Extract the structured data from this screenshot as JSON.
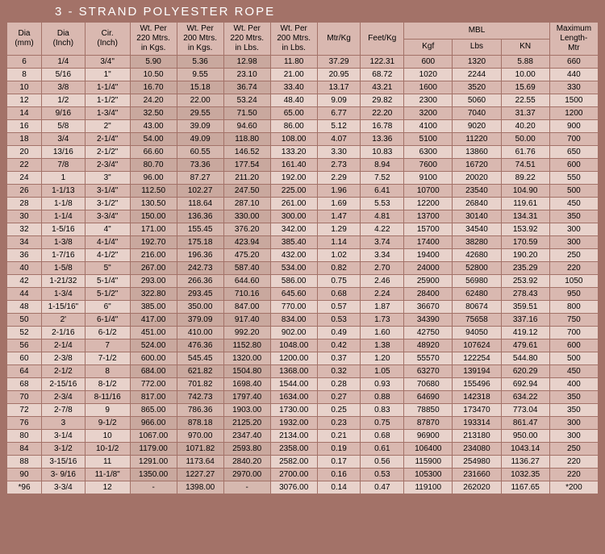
{
  "title": "3 - STRAND  POLYESTER  ROPE",
  "headers": {
    "dia_mm": "Dia\n(mm)",
    "dia_in": "Dia\n(Inch)",
    "cir_in": "Cir.\n(Inch)",
    "wt220kg": "Wt. Per\n220 Mtrs.\nin Kgs.",
    "wt200kg": "Wt. Per\n200 Mtrs.\nin Kgs.",
    "wt220lb": "Wt. Per\n220 Mtrs.\nin Lbs.",
    "wt200lb": "Wt. Per\n200 Mtrs.\nin Lbs.",
    "mtrkg": "Mtr/Kg",
    "ftkg": "Feet/Kg",
    "mbl": "MBL",
    "kgf": "Kgf",
    "lbs": "Lbs",
    "kn": "KN",
    "maxlen": "Maximum\nLength-\nMtr"
  },
  "rows": [
    [
      "6",
      "1/4",
      "3/4\"",
      "5.90",
      "5.36",
      "12.98",
      "11.80",
      "37.29",
      "122.31",
      "600",
      "1320",
      "5.88",
      "660"
    ],
    [
      "8",
      "5/16",
      "1\"",
      "10.50",
      "9.55",
      "23.10",
      "21.00",
      "20.95",
      "68.72",
      "1020",
      "2244",
      "10.00",
      "440"
    ],
    [
      "10",
      "3/8",
      "1-1/4\"",
      "16.70",
      "15.18",
      "36.74",
      "33.40",
      "13.17",
      "43.21",
      "1600",
      "3520",
      "15.69",
      "330"
    ],
    [
      "12",
      "1/2",
      "1-1/2\"",
      "24.20",
      "22.00",
      "53.24",
      "48.40",
      "9.09",
      "29.82",
      "2300",
      "5060",
      "22.55",
      "1500"
    ],
    [
      "14",
      "9/16",
      "1-3/4\"",
      "32.50",
      "29.55",
      "71.50",
      "65.00",
      "6.77",
      "22.20",
      "3200",
      "7040",
      "31.37",
      "1200"
    ],
    [
      "16",
      "5/8",
      "2\"",
      "43.00",
      "39.09",
      "94.60",
      "86.00",
      "5.12",
      "16.78",
      "4100",
      "9020",
      "40.20",
      "900"
    ],
    [
      "18",
      "3/4",
      "2-1/4\"",
      "54.00",
      "49.09",
      "118.80",
      "108.00",
      "4.07",
      "13.36",
      "5100",
      "11220",
      "50.00",
      "700"
    ],
    [
      "20",
      "13/16",
      "2-1/2\"",
      "66.60",
      "60.55",
      "146.52",
      "133.20",
      "3.30",
      "10.83",
      "6300",
      "13860",
      "61.76",
      "650"
    ],
    [
      "22",
      "7/8",
      "2-3/4\"",
      "80.70",
      "73.36",
      "177.54",
      "161.40",
      "2.73",
      "8.94",
      "7600",
      "16720",
      "74.51",
      "600"
    ],
    [
      "24",
      "1",
      "3\"",
      "96.00",
      "87.27",
      "211.20",
      "192.00",
      "2.29",
      "7.52",
      "9100",
      "20020",
      "89.22",
      "550"
    ],
    [
      "26",
      "1-1/13",
      "3-1/4\"",
      "112.50",
      "102.27",
      "247.50",
      "225.00",
      "1.96",
      "6.41",
      "10700",
      "23540",
      "104.90",
      "500"
    ],
    [
      "28",
      "1-1/8",
      "3-1/2\"",
      "130.50",
      "118.64",
      "287.10",
      "261.00",
      "1.69",
      "5.53",
      "12200",
      "26840",
      "119.61",
      "450"
    ],
    [
      "30",
      "1-1/4",
      "3-3/4\"",
      "150.00",
      "136.36",
      "330.00",
      "300.00",
      "1.47",
      "4.81",
      "13700",
      "30140",
      "134.31",
      "350"
    ],
    [
      "32",
      "1-5/16",
      "4\"",
      "171.00",
      "155.45",
      "376.20",
      "342.00",
      "1.29",
      "4.22",
      "15700",
      "34540",
      "153.92",
      "300"
    ],
    [
      "34",
      "1-3/8",
      "4-1/4\"",
      "192.70",
      "175.18",
      "423.94",
      "385.40",
      "1.14",
      "3.74",
      "17400",
      "38280",
      "170.59",
      "300"
    ],
    [
      "36",
      "1-7/16",
      "4-1/2\"",
      "216.00",
      "196.36",
      "475.20",
      "432.00",
      "1.02",
      "3.34",
      "19400",
      "42680",
      "190.20",
      "250"
    ],
    [
      "40",
      "1-5/8",
      "5\"",
      "267.00",
      "242.73",
      "587.40",
      "534.00",
      "0.82",
      "2.70",
      "24000",
      "52800",
      "235.29",
      "220"
    ],
    [
      "42",
      "1-21/32",
      "5-1/4\"",
      "293.00",
      "266.36",
      "644.60",
      "586.00",
      "0.75",
      "2.46",
      "25900",
      "56980",
      "253.92",
      "1050"
    ],
    [
      "44",
      "1-3/4",
      "5-1/2\"",
      "322.80",
      "293.45",
      "710.16",
      "645.60",
      "0.68",
      "2.24",
      "28400",
      "62480",
      "278.43",
      "950"
    ],
    [
      "48",
      "1-15/16\"",
      "6\"",
      "385.00",
      "350.00",
      "847.00",
      "770.00",
      "0.57",
      "1.87",
      "36670",
      "80674",
      "359.51",
      "800"
    ],
    [
      "50",
      "2'",
      "6-1/4\"",
      "417.00",
      "379.09",
      "917.40",
      "834.00",
      "0.53",
      "1.73",
      "34390",
      "75658",
      "337.16",
      "750"
    ],
    [
      "52",
      "2-1/16",
      "6-1/2",
      "451.00",
      "410.00",
      "992.20",
      "902.00",
      "0.49",
      "1.60",
      "42750",
      "94050",
      "419.12",
      "700"
    ],
    [
      "56",
      "2-1/4",
      "7",
      "524.00",
      "476.36",
      "1152.80",
      "1048.00",
      "0.42",
      "1.38",
      "48920",
      "107624",
      "479.61",
      "600"
    ],
    [
      "60",
      "2-3/8",
      "7-1/2",
      "600.00",
      "545.45",
      "1320.00",
      "1200.00",
      "0.37",
      "1.20",
      "55570",
      "122254",
      "544.80",
      "500"
    ],
    [
      "64",
      "2-1/2",
      "8",
      "684.00",
      "621.82",
      "1504.80",
      "1368.00",
      "0.32",
      "1.05",
      "63270",
      "139194",
      "620.29",
      "450"
    ],
    [
      "68",
      "2-15/16",
      "8-1/2",
      "772.00",
      "701.82",
      "1698.40",
      "1544.00",
      "0.28",
      "0.93",
      "70680",
      "155496",
      "692.94",
      "400"
    ],
    [
      "70",
      "2-3/4",
      "8-11/16",
      "817.00",
      "742.73",
      "1797.40",
      "1634.00",
      "0.27",
      "0.88",
      "64690",
      "142318",
      "634.22",
      "350"
    ],
    [
      "72",
      "2-7/8",
      "9",
      "865.00",
      "786.36",
      "1903.00",
      "1730.00",
      "0.25",
      "0.83",
      "78850",
      "173470",
      "773.04",
      "350"
    ],
    [
      "76",
      "3",
      "9-1/2",
      "966.00",
      "878.18",
      "2125.20",
      "1932.00",
      "0.23",
      "0.75",
      "87870",
      "193314",
      "861.47",
      "300"
    ],
    [
      "80",
      "3-1/4",
      "10",
      "1067.00",
      "970.00",
      "2347.40",
      "2134.00",
      "0.21",
      "0.68",
      "96900",
      "213180",
      "950.00",
      "300"
    ],
    [
      "84",
      "3-1/2",
      "10-1/2",
      "1179.00",
      "1071.82",
      "2593.80",
      "2358.00",
      "0.19",
      "0.61",
      "106400",
      "234080",
      "1043.14",
      "250"
    ],
    [
      "88",
      "3-15/16",
      "11",
      "1291.00",
      "1173.64",
      "2840.20",
      "2582.00",
      "0.17",
      "0.56",
      "115900",
      "254980",
      "1136.27",
      "220"
    ],
    [
      "90",
      "3- 9/16",
      "11-1/8\"",
      "1350.00",
      "1227.27",
      "2970.00",
      "2700.00",
      "0.16",
      "0.53",
      "105300",
      "231660",
      "1032.35",
      "220"
    ],
    [
      "*96",
      "3-3/4",
      "12",
      "-",
      "1398.00",
      "-",
      "3076.00",
      "0.14",
      "0.47",
      "119100",
      "262020",
      "1167.65",
      "*200"
    ]
  ]
}
